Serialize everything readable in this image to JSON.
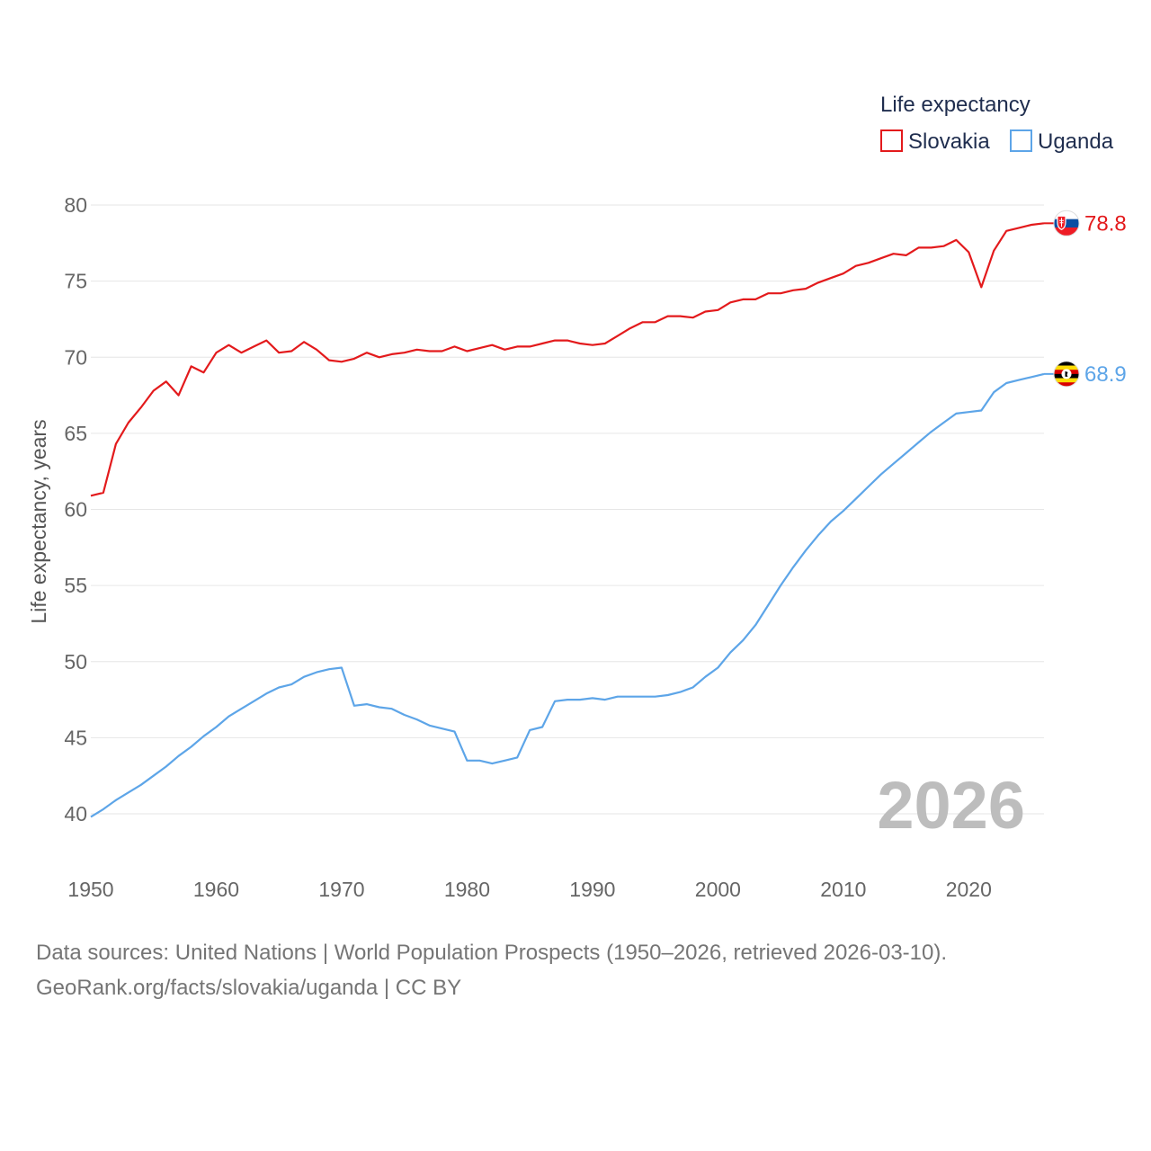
{
  "chart_data": {
    "type": "line",
    "title": "",
    "xlabel": "",
    "ylabel": "Life expectancy, years",
    "xlim": [
      1950,
      2026
    ],
    "ylim": [
      40,
      80
    ],
    "x_ticks": [
      1950,
      1960,
      1970,
      1980,
      1990,
      2000,
      2010,
      2020
    ],
    "y_ticks": [
      40,
      45,
      50,
      55,
      60,
      65,
      70,
      75,
      80
    ],
    "grid": true,
    "legend_title": "Life expectancy",
    "legend_position": "top-right",
    "year_label": "2026",
    "x": [
      1950,
      1951,
      1952,
      1953,
      1954,
      1955,
      1956,
      1957,
      1958,
      1959,
      1960,
      1961,
      1962,
      1963,
      1964,
      1965,
      1966,
      1967,
      1968,
      1969,
      1970,
      1971,
      1972,
      1973,
      1974,
      1975,
      1976,
      1977,
      1978,
      1979,
      1980,
      1981,
      1982,
      1983,
      1984,
      1985,
      1986,
      1987,
      1988,
      1989,
      1990,
      1991,
      1992,
      1993,
      1994,
      1995,
      1996,
      1997,
      1998,
      1999,
      2000,
      2001,
      2002,
      2003,
      2004,
      2005,
      2006,
      2007,
      2008,
      2009,
      2010,
      2011,
      2012,
      2013,
      2014,
      2015,
      2016,
      2017,
      2018,
      2019,
      2020,
      2021,
      2022,
      2023,
      2024,
      2025,
      2026
    ],
    "series": [
      {
        "name": "Slovakia",
        "color": "#e31a1c",
        "flag_icon": "slovakia-flag-icon",
        "end_label": "78.8",
        "values": [
          60.9,
          61.1,
          64.3,
          65.7,
          66.7,
          67.8,
          68.4,
          67.5,
          69.4,
          69.0,
          70.3,
          70.8,
          70.3,
          70.7,
          71.1,
          70.3,
          70.4,
          71.0,
          70.5,
          69.8,
          69.7,
          69.9,
          70.3,
          70.0,
          70.2,
          70.3,
          70.5,
          70.4,
          70.4,
          70.7,
          70.4,
          70.6,
          70.8,
          70.5,
          70.7,
          70.7,
          70.9,
          71.1,
          71.1,
          70.9,
          70.8,
          70.9,
          71.4,
          71.9,
          72.3,
          72.3,
          72.7,
          72.7,
          72.6,
          73.0,
          73.1,
          73.6,
          73.8,
          73.8,
          74.2,
          74.2,
          74.4,
          74.5,
          74.9,
          75.2,
          75.5,
          76.0,
          76.2,
          76.5,
          76.8,
          76.7,
          77.2,
          77.2,
          77.3,
          77.7,
          76.9,
          74.6,
          77.0,
          78.3,
          78.5,
          78.7,
          78.8
        ]
      },
      {
        "name": "Uganda",
        "color": "#5da5e8",
        "flag_icon": "uganda-flag-icon",
        "end_label": "68.9",
        "values": [
          39.8,
          40.3,
          40.9,
          41.4,
          41.9,
          42.5,
          43.1,
          43.8,
          44.4,
          45.1,
          45.7,
          46.4,
          46.9,
          47.4,
          47.9,
          48.3,
          48.5,
          49.0,
          49.3,
          49.5,
          49.6,
          47.1,
          47.2,
          47.0,
          46.9,
          46.5,
          46.2,
          45.8,
          45.6,
          45.4,
          43.5,
          43.5,
          43.3,
          43.5,
          43.7,
          45.5,
          45.7,
          47.4,
          47.5,
          47.5,
          47.6,
          47.5,
          47.7,
          47.7,
          47.7,
          47.7,
          47.8,
          48.0,
          48.3,
          49.0,
          49.6,
          50.6,
          51.4,
          52.4,
          53.7,
          55.0,
          56.2,
          57.3,
          58.3,
          59.2,
          59.9,
          60.7,
          61.5,
          62.3,
          63.0,
          63.7,
          64.4,
          65.1,
          65.7,
          66.3,
          66.4,
          66.5,
          67.7,
          68.3,
          68.5,
          68.7,
          68.9
        ]
      }
    ]
  },
  "footer": {
    "sources": "Data sources: United Nations | World Population Prospects (1950–2026, retrieved 2026-03-10).",
    "credit": "GeoRank.org/facts/slovakia/uganda | CC BY"
  }
}
